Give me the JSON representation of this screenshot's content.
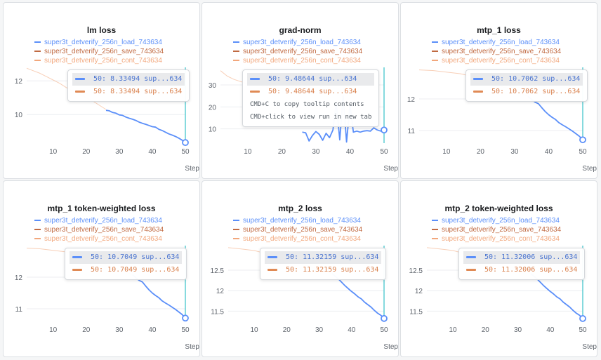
{
  "legend": [
    {
      "name": "super3t_detverify_256n_load_743634",
      "color": "#5b8ff9"
    },
    {
      "name": "super3t_detverify_256n_save_743634",
      "color": "#c06a42"
    },
    {
      "name": "super3t_detverify_256n_cont_743634",
      "color": "#f2a77c"
    }
  ],
  "tooltip_hint": [
    "CMD+C to copy tooltip contents",
    "CMD+click to view run in new tab"
  ],
  "step_label": "Step",
  "panels": [
    {
      "title": "lm loss",
      "tooltip": [
        "50: 8.33494 sup...634",
        "50: 8.33494 sup...634"
      ]
    },
    {
      "title": "grad-norm",
      "tooltip": [
        "50: 9.48644 sup...634",
        "50: 9.48644 sup...634"
      ]
    },
    {
      "title": "mtp_1 loss",
      "tooltip": [
        "50: 10.7062 sup...634",
        "50: 10.7062 sup...634"
      ]
    },
    {
      "title": "mtp_1 token-weighted loss",
      "tooltip": [
        "50: 10.7049 sup...634",
        "50: 10.7049 sup...634"
      ]
    },
    {
      "title": "mtp_2 loss",
      "tooltip": [
        "50: 11.32159 sup...634",
        "50: 11.32159 sup...634"
      ]
    },
    {
      "title": "mtp_2 token-weighted loss",
      "tooltip": [
        "50: 11.32006 sup...634",
        "50: 11.32006 sup...634"
      ]
    }
  ],
  "chart_data": [
    {
      "type": "line",
      "title": "lm loss",
      "xlabel": "Step",
      "xlim": [
        2,
        50
      ],
      "ylim": [
        8.3,
        12.8
      ],
      "xticks": [
        10,
        20,
        30,
        40,
        50
      ],
      "yticks": [
        10,
        12
      ],
      "series": [
        {
          "name": "super3t_detverify_256n_load_743634",
          "color": "#5b8ff9",
          "x": [
            26,
            27,
            28,
            29,
            30,
            31,
            32,
            33,
            34,
            35,
            36,
            37,
            38,
            39,
            40,
            41,
            42,
            43,
            44,
            45,
            46,
            47,
            48,
            49,
            50
          ],
          "y": [
            10.25,
            10.22,
            10.12,
            10.08,
            9.98,
            9.95,
            9.85,
            9.78,
            9.72,
            9.65,
            9.55,
            9.48,
            9.42,
            9.35,
            9.28,
            9.25,
            9.12,
            9.05,
            8.95,
            8.85,
            8.78,
            8.7,
            8.6,
            8.48,
            8.33494
          ]
        },
        {
          "name": "super3t_detverify_256n_save_743634",
          "color": "#c06a42",
          "x": [
            50
          ],
          "y": [
            8.33494
          ]
        },
        {
          "name": "super3t_detverify_256n_cont_743634",
          "color": "#f2a77c",
          "x": [
            2,
            4,
            6,
            8,
            10,
            12,
            14,
            16,
            18,
            20,
            22,
            24,
            26
          ],
          "y": [
            12.75,
            12.6,
            12.45,
            12.25,
            12.05,
            11.85,
            11.6,
            11.4,
            11.2,
            11.0,
            10.8,
            10.55,
            10.3
          ]
        }
      ]
    },
    {
      "type": "line",
      "title": "grad-norm",
      "xlabel": "Step",
      "xlim": [
        2,
        50
      ],
      "ylim": [
        3.5,
        38
      ],
      "xticks": [
        10,
        20,
        30,
        40,
        50
      ],
      "yticks": [
        10,
        20,
        30
      ],
      "series": [
        {
          "name": "super3t_detverify_256n_load_743634",
          "color": "#5b8ff9",
          "x": [
            26,
            27,
            28,
            29,
            30,
            31,
            32,
            33,
            34,
            35,
            36,
            37,
            38,
            39,
            40,
            41,
            42,
            43,
            44,
            45,
            46,
            47,
            48,
            49,
            50
          ],
          "y": [
            8.5,
            8.2,
            4.5,
            7.0,
            8.8,
            7.5,
            4.8,
            8.0,
            6.0,
            9.5,
            22.0,
            5.0,
            25.0,
            4.0,
            21.0,
            8.5,
            9.0,
            8.5,
            9.0,
            9.2,
            9.0,
            10.5,
            9.5,
            9.0,
            9.48644
          ]
        },
        {
          "name": "super3t_detverify_256n_save_743634",
          "color": "#c06a42",
          "x": [
            50
          ],
          "y": [
            9.48644
          ]
        },
        {
          "name": "super3t_detverify_256n_cont_743634",
          "color": "#f2a77c",
          "x": [
            2,
            4,
            6,
            8,
            10,
            12,
            14,
            16,
            18,
            20,
            22,
            24,
            26
          ],
          "y": [
            36.5,
            34,
            32.5,
            31.5,
            30.5,
            30,
            29.5,
            29,
            28.5,
            28.3,
            28,
            27.5,
            27
          ]
        }
      ]
    },
    {
      "type": "line",
      "title": "mtp_1 loss",
      "xlabel": "Step",
      "xlim": [
        2,
        50
      ],
      "ylim": [
        10.6,
        13.0
      ],
      "xticks": [
        10,
        20,
        30,
        40,
        50
      ],
      "yticks": [
        11,
        12
      ],
      "series": [
        {
          "name": "super3t_detverify_256n_load_743634",
          "color": "#5b8ff9",
          "x": [
            34,
            35,
            36,
            37,
            38,
            39,
            40,
            41,
            42,
            43,
            44,
            45,
            46,
            47,
            48,
            49,
            50
          ],
          "y": [
            12.08,
            11.98,
            11.9,
            11.85,
            11.72,
            11.6,
            11.5,
            11.42,
            11.35,
            11.25,
            11.18,
            11.12,
            11.05,
            10.98,
            10.9,
            10.82,
            10.7062
          ]
        },
        {
          "name": "super3t_detverify_256n_save_743634",
          "color": "#c06a42",
          "x": [
            50
          ],
          "y": [
            10.7062
          ]
        },
        {
          "name": "super3t_detverify_256n_cont_743634",
          "color": "#f2a77c",
          "x": [
            2,
            6,
            10,
            14,
            18,
            22,
            26,
            30,
            34
          ],
          "y": [
            12.92,
            12.9,
            12.85,
            12.8,
            12.7,
            12.55,
            12.4,
            12.25,
            12.08
          ]
        }
      ]
    },
    {
      "type": "line",
      "title": "mtp_1 token-weighted loss",
      "xlabel": "Step",
      "xlim": [
        2,
        50
      ],
      "ylim": [
        10.6,
        13.0
      ],
      "xticks": [
        10,
        20,
        30,
        40,
        50
      ],
      "yticks": [
        11,
        12
      ],
      "series": [
        {
          "name": "super3t_detverify_256n_load_743634",
          "color": "#5b8ff9",
          "x": [
            34,
            35,
            36,
            37,
            38,
            39,
            40,
            41,
            42,
            43,
            44,
            45,
            46,
            47,
            48,
            49,
            50
          ],
          "y": [
            12.08,
            11.98,
            11.9,
            11.85,
            11.72,
            11.6,
            11.5,
            11.42,
            11.35,
            11.25,
            11.18,
            11.12,
            11.05,
            10.98,
            10.9,
            10.82,
            10.7049
          ]
        },
        {
          "name": "super3t_detverify_256n_save_743634",
          "color": "#c06a42",
          "x": [
            50
          ],
          "y": [
            10.7049
          ]
        },
        {
          "name": "super3t_detverify_256n_cont_743634",
          "color": "#f2a77c",
          "x": [
            2,
            6,
            10,
            14,
            18,
            22,
            26,
            30,
            34
          ],
          "y": [
            12.92,
            12.9,
            12.85,
            12.8,
            12.7,
            12.55,
            12.4,
            12.25,
            12.08
          ]
        }
      ]
    },
    {
      "type": "line",
      "title": "mtp_2 loss",
      "xlabel": "Step",
      "xlim": [
        2,
        50
      ],
      "ylim": [
        11.25,
        13.1
      ],
      "xticks": [
        10,
        20,
        30,
        40,
        50
      ],
      "yticks": [
        11.5,
        12,
        12.5
      ],
      "series": [
        {
          "name": "super3t_detverify_256n_load_743634",
          "color": "#5b8ff9",
          "x": [
            34,
            35,
            36,
            37,
            38,
            39,
            40,
            41,
            42,
            43,
            44,
            45,
            46,
            47,
            48,
            49,
            50
          ],
          "y": [
            12.42,
            12.35,
            12.28,
            12.2,
            12.12,
            12.05,
            11.98,
            11.92,
            11.85,
            11.8,
            11.72,
            11.66,
            11.6,
            11.52,
            11.45,
            11.4,
            11.32159
          ]
        },
        {
          "name": "super3t_detverify_256n_save_743634",
          "color": "#c06a42",
          "x": [
            50
          ],
          "y": [
            11.32159
          ]
        },
        {
          "name": "super3t_detverify_256n_cont_743634",
          "color": "#f2a77c",
          "x": [
            2,
            6,
            10,
            14,
            18,
            22,
            26,
            30,
            34
          ],
          "y": [
            13.05,
            13.02,
            12.98,
            12.9,
            12.82,
            12.72,
            12.62,
            12.52,
            12.42
          ]
        }
      ]
    },
    {
      "type": "line",
      "title": "mtp_2 token-weighted loss",
      "xlabel": "Step",
      "xlim": [
        2,
        50
      ],
      "ylim": [
        11.25,
        13.1
      ],
      "xticks": [
        10,
        20,
        30,
        40,
        50
      ],
      "yticks": [
        11.5,
        12,
        12.5
      ],
      "series": [
        {
          "name": "super3t_detverify_256n_load_743634",
          "color": "#5b8ff9",
          "x": [
            34,
            35,
            36,
            37,
            38,
            39,
            40,
            41,
            42,
            43,
            44,
            45,
            46,
            47,
            48,
            49,
            50
          ],
          "y": [
            12.42,
            12.35,
            12.28,
            12.2,
            12.12,
            12.05,
            11.98,
            11.92,
            11.85,
            11.8,
            11.72,
            11.66,
            11.6,
            11.52,
            11.45,
            11.4,
            11.32006
          ]
        },
        {
          "name": "super3t_detverify_256n_save_743634",
          "color": "#c06a42",
          "x": [
            50
          ],
          "y": [
            11.32006
          ]
        },
        {
          "name": "super3t_detverify_256n_cont_743634",
          "color": "#f2a77c",
          "x": [
            2,
            6,
            10,
            14,
            18,
            22,
            26,
            30,
            34
          ],
          "y": [
            13.05,
            13.02,
            12.98,
            12.9,
            12.82,
            12.72,
            12.62,
            12.52,
            12.42
          ]
        }
      ]
    }
  ]
}
